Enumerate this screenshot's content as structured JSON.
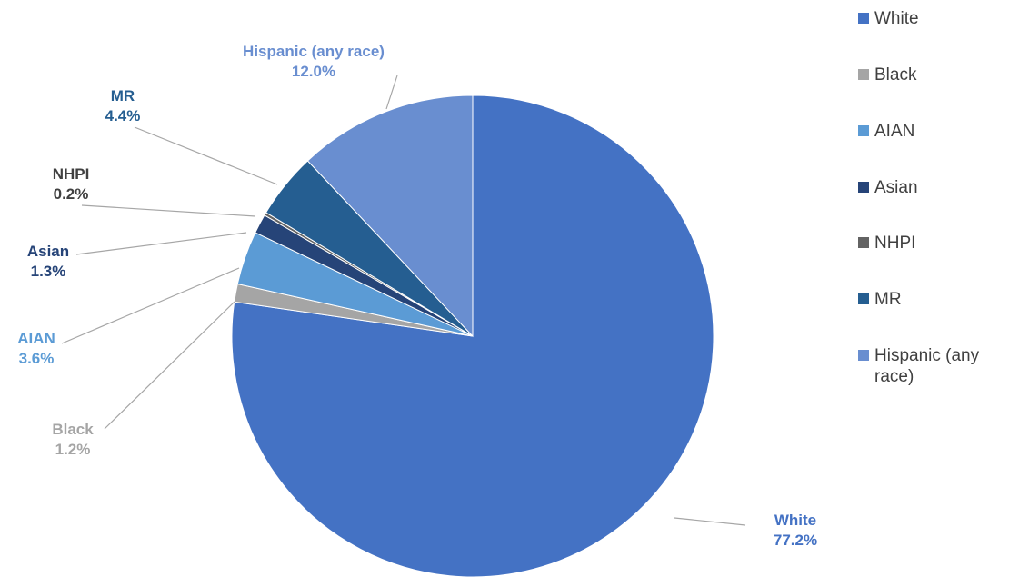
{
  "chart_data": {
    "type": "pie",
    "start_angle_deg": 0,
    "direction": "clockwise",
    "slices": [
      {
        "name": "White",
        "value": 77.2,
        "label": "77.2%",
        "color": "#4472C4",
        "label_color": "#4472C4"
      },
      {
        "name": "Black",
        "value": 1.2,
        "label": "1.2%",
        "color": "#A5A5A5",
        "label_color": "#A5A5A5"
      },
      {
        "name": "AIAN",
        "value": 3.6,
        "label": "3.6%",
        "color": "#5B9BD5",
        "label_color": "#5B9BD5"
      },
      {
        "name": "Asian",
        "value": 1.3,
        "label": "1.3%",
        "color": "#264478",
        "label_color": "#264478"
      },
      {
        "name": "NHPI",
        "value": 0.2,
        "label": "0.2%",
        "color": "#636363",
        "label_color": "#404040"
      },
      {
        "name": "MR",
        "value": 4.4,
        "label": "4.4%",
        "color": "#255E91",
        "label_color": "#255E91"
      },
      {
        "name": "Hispanic (any race)",
        "value": 12.0,
        "label": "12.0%",
        "color": "#698ED0",
        "label_color": "#698ED0"
      }
    ],
    "legend": {
      "position": "right",
      "entries": [
        "White",
        "Black",
        "AIAN",
        "Asian",
        "NHPI",
        "MR",
        "Hispanic (any race)"
      ]
    },
    "data_labels": "outside-with-leader-lines"
  }
}
